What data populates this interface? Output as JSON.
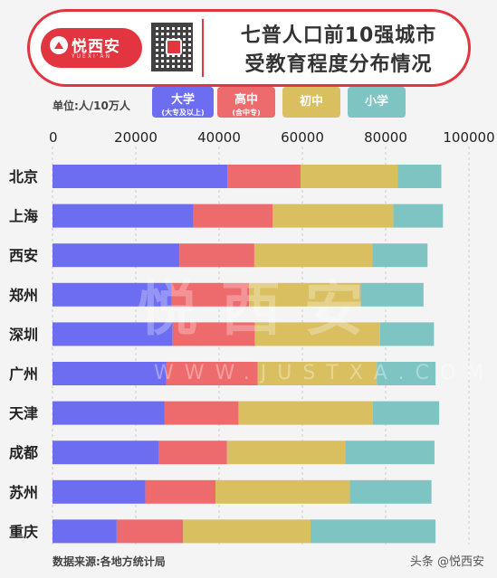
{
  "header": {
    "brand_name": "悦西安",
    "brand_sub": "YUEXI'AN",
    "title_line1": "七普人口前10强城市",
    "title_line2": "受教育程度分布情况"
  },
  "unit_label": "单位:人/10万人",
  "legend": [
    {
      "label": "大学",
      "sub": "(大专及以上)",
      "color": "#6d6df2"
    },
    {
      "label": "高中",
      "sub": "(含中专)",
      "color": "#ee6b6d"
    },
    {
      "label": "初中",
      "sub": "",
      "color": "#d9bf60"
    },
    {
      "label": "小学",
      "sub": "",
      "color": "#7dc4c2"
    }
  ],
  "chart_data": {
    "type": "bar",
    "orientation": "horizontal",
    "stacked": true,
    "categories": [
      "北京",
      "上海",
      "西安",
      "郑州",
      "深圳",
      "广州",
      "天津",
      "成都",
      "苏州",
      "重庆"
    ],
    "series": [
      {
        "name": "大学",
        "color": "#6d6df2",
        "values": [
          41980,
          33872,
          30496,
          28660,
          28850,
          27277,
          26940,
          25582,
          22299,
          15412
        ]
      },
      {
        "name": "高中",
        "color": "#ee6b6d",
        "values": [
          17593,
          19020,
          17964,
          18536,
          19730,
          22015,
          17719,
          16329,
          16835,
          15956
        ]
      },
      {
        "name": "初中",
        "color": "#d9bf60",
        "values": [
          23289,
          28935,
          28341,
          26815,
          30062,
          28601,
          32294,
          28378,
          32287,
          30582
        ]
      },
      {
        "name": "小学",
        "color": "#7dc4c2",
        "values": [
          10503,
          11929,
          13254,
          15084,
          12962,
          14094,
          15905,
          21441,
          19583,
          30034
        ]
      }
    ],
    "xticks": [
      0,
      20000,
      40000,
      60000,
      80000,
      100000
    ],
    "xlim": [
      0,
      100000
    ],
    "gridlines": true
  },
  "watermark": {
    "text": "悦西安",
    "url": "WWW.JUSTXA.COM"
  },
  "source_note": "数据来源:各地方统计局",
  "credit": "头条 @悦西安"
}
